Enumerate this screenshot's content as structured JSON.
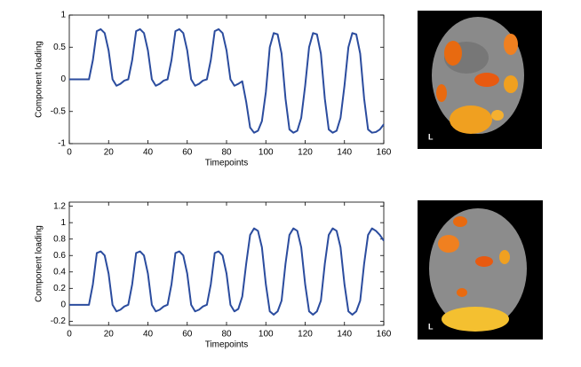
{
  "chart_data": [
    {
      "type": "line",
      "xlabel": "Timepoints",
      "ylabel": "Component loading",
      "color": "#2b4c9e",
      "xlim": [
        0,
        160
      ],
      "xticks": [
        0,
        20,
        40,
        60,
        80,
        100,
        120,
        140,
        160
      ],
      "ylim": [
        -1,
        1
      ],
      "yticks": [
        -1,
        -0.5,
        0,
        0.5,
        1
      ],
      "x": [
        0,
        2,
        4,
        6,
        8,
        10,
        12,
        14,
        16,
        18,
        20,
        22,
        24,
        26,
        28,
        30,
        32,
        34,
        36,
        38,
        40,
        42,
        44,
        46,
        48,
        50,
        52,
        54,
        56,
        58,
        60,
        62,
        64,
        66,
        68,
        70,
        72,
        74,
        76,
        78,
        80,
        82,
        84,
        86,
        88,
        90,
        92,
        94,
        96,
        98,
        100,
        102,
        104,
        106,
        108,
        110,
        112,
        114,
        116,
        118,
        120,
        122,
        124,
        126,
        128,
        130,
        132,
        134,
        136,
        138,
        140,
        142,
        144,
        146,
        148,
        150,
        152,
        154,
        156,
        158,
        160
      ],
      "values": [
        0,
        0,
        0,
        0,
        0,
        0,
        0.3,
        0.75,
        0.78,
        0.72,
        0.45,
        0,
        -0.1,
        -0.07,
        -0.02,
        0,
        0.3,
        0.75,
        0.78,
        0.72,
        0.45,
        0,
        -0.1,
        -0.07,
        -0.02,
        0,
        0.3,
        0.75,
        0.78,
        0.72,
        0.45,
        0,
        -0.1,
        -0.07,
        -0.02,
        0,
        0.3,
        0.75,
        0.78,
        0.72,
        0.45,
        0,
        -0.1,
        -0.07,
        -0.03,
        -0.35,
        -0.75,
        -0.83,
        -0.8,
        -0.65,
        -0.2,
        0.5,
        0.72,
        0.7,
        0.4,
        -0.3,
        -0.78,
        -0.83,
        -0.8,
        -0.6,
        -0.1,
        0.5,
        0.72,
        0.7,
        0.4,
        -0.3,
        -0.78,
        -0.83,
        -0.8,
        -0.6,
        -0.1,
        0.5,
        0.72,
        0.7,
        0.4,
        -0.3,
        -0.78,
        -0.83,
        -0.82,
        -0.78,
        -0.7
      ]
    },
    {
      "type": "line",
      "xlabel": "Timepoints",
      "ylabel": "Component loading",
      "color": "#2b4c9e",
      "xlim": [
        0,
        160
      ],
      "xticks": [
        0,
        20,
        40,
        60,
        80,
        100,
        120,
        140,
        160
      ],
      "ylim": [
        -0.25,
        1.25
      ],
      "yticks": [
        -0.2,
        0,
        0.2,
        0.4,
        0.6,
        0.8,
        1,
        1.2
      ],
      "x": [
        0,
        2,
        4,
        6,
        8,
        10,
        12,
        14,
        16,
        18,
        20,
        22,
        24,
        26,
        28,
        30,
        32,
        34,
        36,
        38,
        40,
        42,
        44,
        46,
        48,
        50,
        52,
        54,
        56,
        58,
        60,
        62,
        64,
        66,
        68,
        70,
        72,
        74,
        76,
        78,
        80,
        82,
        84,
        86,
        88,
        90,
        92,
        94,
        96,
        98,
        100,
        102,
        104,
        106,
        108,
        110,
        112,
        114,
        116,
        118,
        120,
        122,
        124,
        126,
        128,
        130,
        132,
        134,
        136,
        138,
        140,
        142,
        144,
        146,
        148,
        150,
        152,
        154,
        156,
        158,
        160
      ],
      "values": [
        0,
        0,
        0,
        0,
        0,
        0,
        0.25,
        0.63,
        0.65,
        0.6,
        0.38,
        0,
        -0.08,
        -0.06,
        -0.02,
        0,
        0.25,
        0.63,
        0.65,
        0.6,
        0.38,
        0,
        -0.08,
        -0.06,
        -0.02,
        0,
        0.25,
        0.63,
        0.65,
        0.6,
        0.38,
        0,
        -0.08,
        -0.06,
        -0.02,
        0,
        0.25,
        0.63,
        0.65,
        0.6,
        0.38,
        0,
        -0.08,
        -0.05,
        0.1,
        0.5,
        0.85,
        0.93,
        0.9,
        0.7,
        0.25,
        -0.08,
        -0.12,
        -0.08,
        0.05,
        0.5,
        0.85,
        0.93,
        0.9,
        0.7,
        0.25,
        -0.08,
        -0.12,
        -0.08,
        0.05,
        0.5,
        0.85,
        0.93,
        0.9,
        0.7,
        0.25,
        -0.08,
        -0.12,
        -0.08,
        0.05,
        0.5,
        0.85,
        0.93,
        0.9,
        0.85,
        0.78
      ]
    }
  ],
  "images": [
    {
      "label": "L"
    },
    {
      "label": "L"
    }
  ]
}
